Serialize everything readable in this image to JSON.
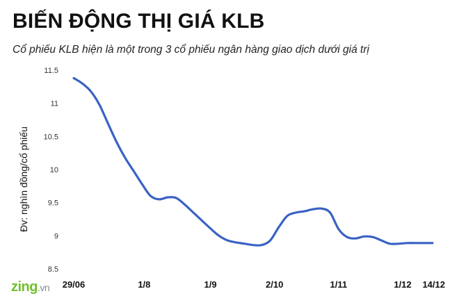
{
  "title": "BIẾN ĐỘNG THỊ GIÁ KLB",
  "subtitle": "Cổ phiếu KLB hiện là một trong 3 cổ phiếu ngân hàng giao dịch dưới giá trị",
  "logo": {
    "text": "zing",
    "suffix": ".vn"
  },
  "colors": {
    "line": "#3a62c4"
  },
  "chart_data": {
    "type": "line",
    "title": "BIẾN ĐỘNG THỊ GIÁ KLB",
    "ylabel": "Đv: nghìn đồng/cổ phiếu",
    "xlabel": "",
    "ylim": [
      8.5,
      11.5
    ],
    "yticks": [
      {
        "value": 11.5,
        "label": "11.5"
      },
      {
        "value": 11,
        "label": "11"
      },
      {
        "value": 10.5,
        "label": "10.5"
      },
      {
        "value": 10,
        "label": "10"
      },
      {
        "value": 9.5,
        "label": "9.5"
      },
      {
        "value": 9,
        "label": "9"
      },
      {
        "value": 8.5,
        "label": "8.5"
      }
    ],
    "xlim": [
      0,
      168
    ],
    "xticks": [
      {
        "pos": 0,
        "label": "29/06"
      },
      {
        "pos": 33,
        "label": "1/8"
      },
      {
        "pos": 64,
        "label": "1/9"
      },
      {
        "pos": 94,
        "label": "2/10"
      },
      {
        "pos": 124,
        "label": "1/11"
      },
      {
        "pos": 154,
        "label": "1/12"
      },
      {
        "pos": 168,
        "label": "14/12"
      }
    ],
    "grid": false,
    "series": [
      {
        "x": [
          0,
          4,
          8,
          12,
          16,
          20,
          24,
          28,
          32,
          36,
          40,
          44,
          48,
          52,
          56,
          60,
          64,
          68,
          72,
          76,
          80,
          84,
          88,
          92,
          96,
          100,
          104,
          108,
          112,
          116,
          120,
          124,
          128,
          132,
          136,
          140,
          144,
          148,
          152,
          156,
          160,
          164,
          168
        ],
        "values": [
          11.38,
          11.3,
          11.18,
          10.98,
          10.7,
          10.42,
          10.18,
          9.98,
          9.78,
          9.6,
          9.55,
          9.58,
          9.57,
          9.47,
          9.35,
          9.23,
          9.11,
          9.0,
          8.93,
          8.9,
          8.88,
          8.86,
          8.86,
          8.93,
          9.13,
          9.3,
          9.35,
          9.37,
          9.4,
          9.41,
          9.35,
          9.1,
          8.98,
          8.96,
          8.99,
          8.98,
          8.93,
          8.88,
          8.88,
          8.89,
          8.89,
          8.89,
          8.89
        ]
      }
    ]
  }
}
